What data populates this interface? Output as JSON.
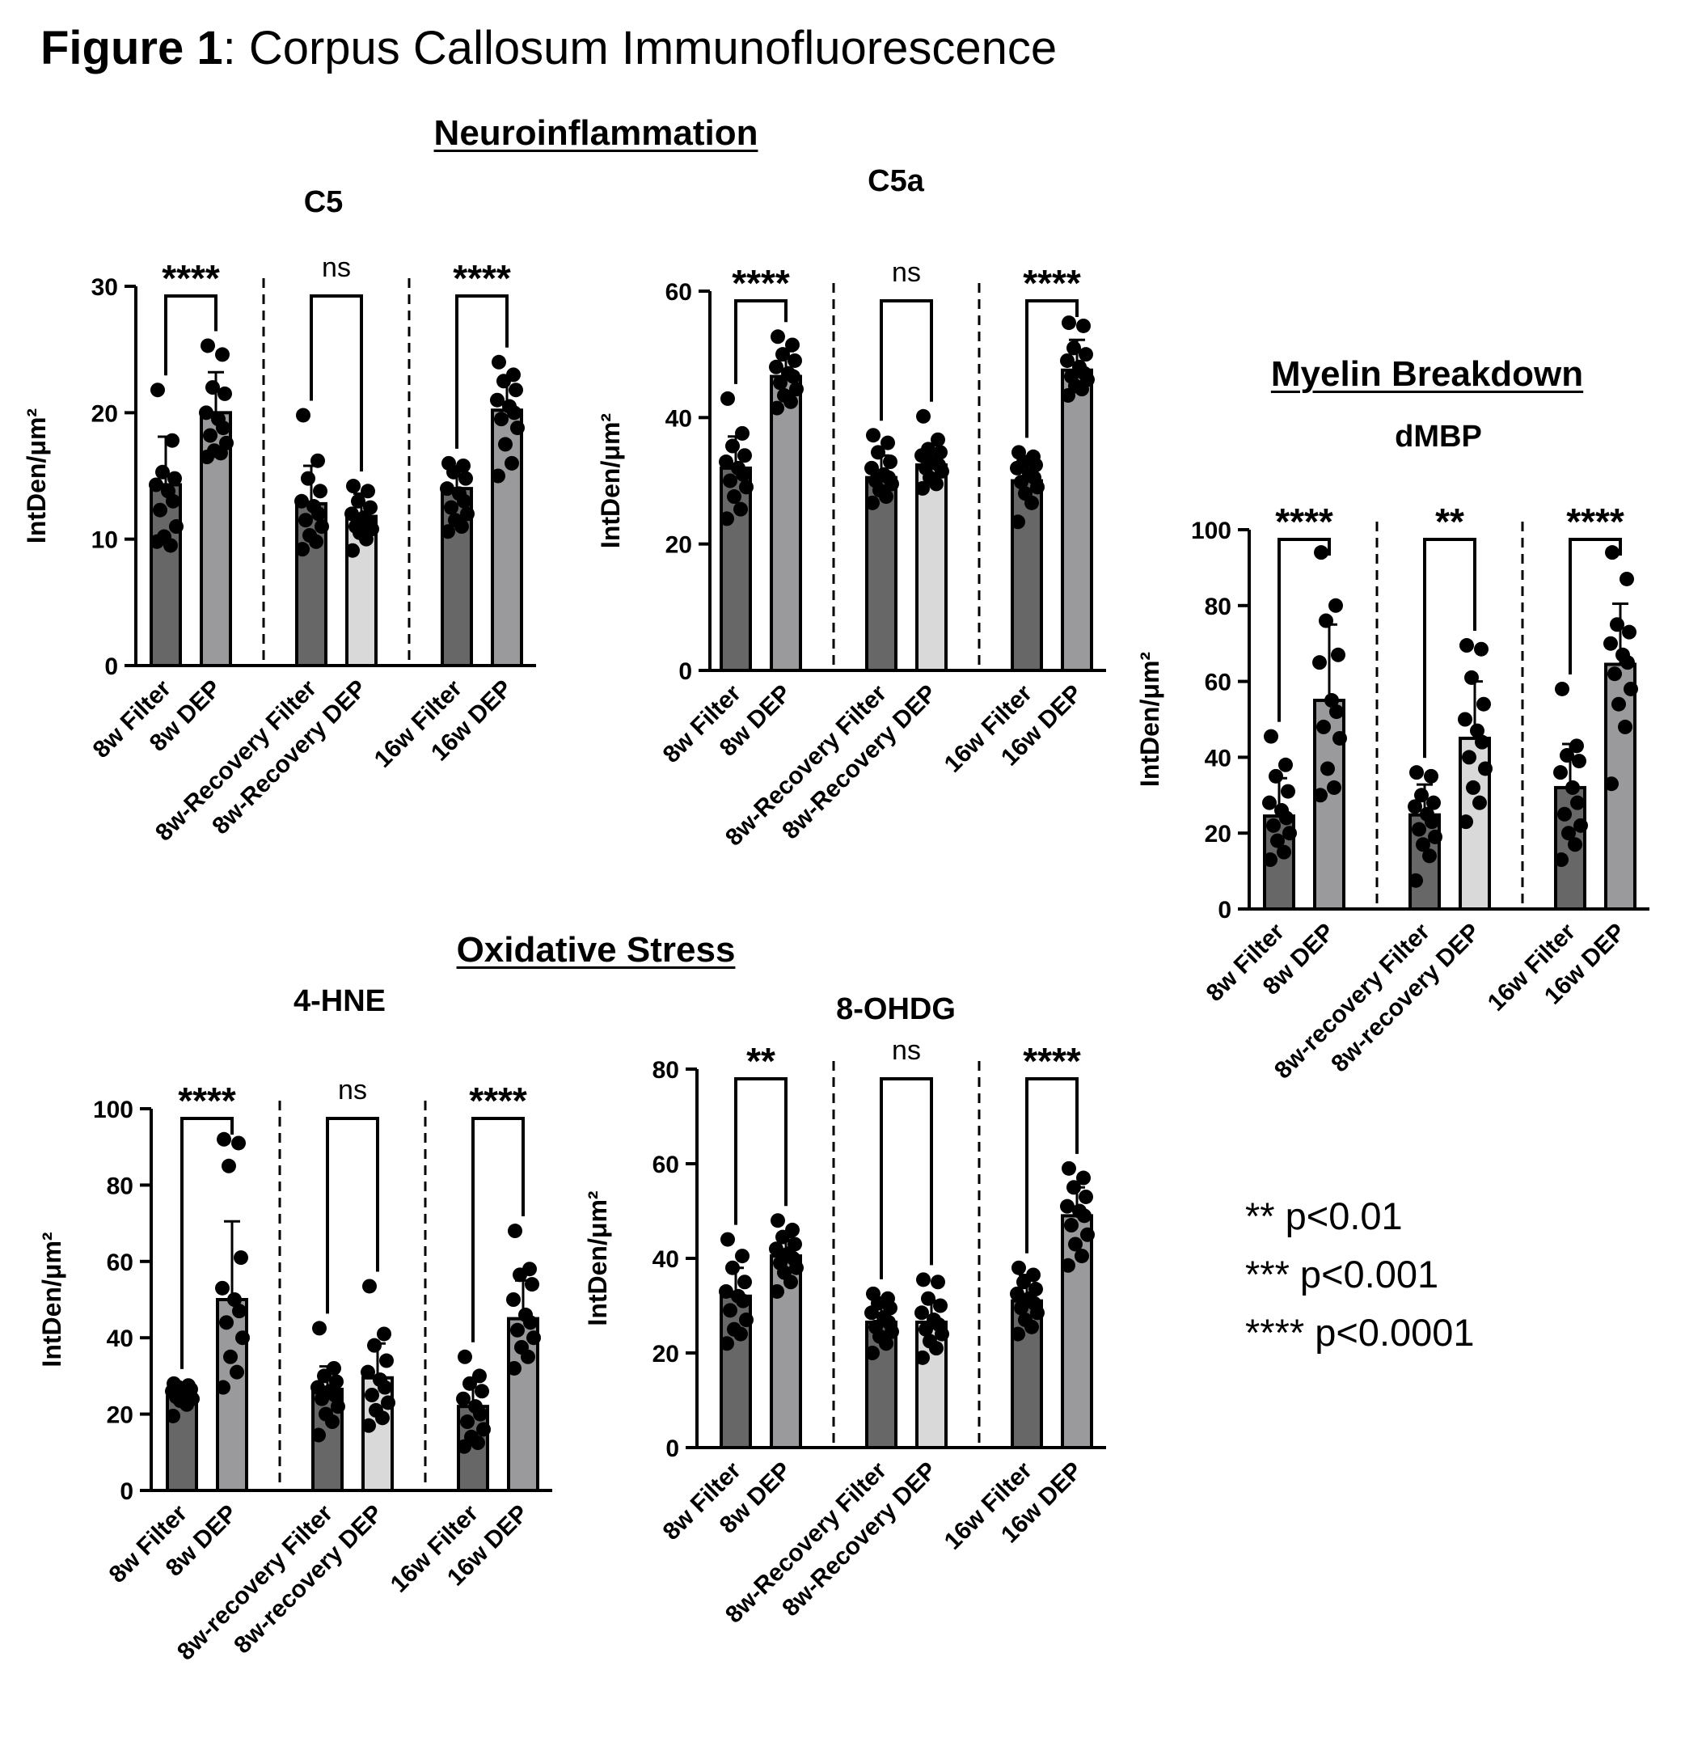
{
  "figure": {
    "title_bold": "Figure 1",
    "title_rest": ": Corpus Callosum Immunofluorescence"
  },
  "sections": {
    "neuro": "Neuroinflammation",
    "oxid": "Oxidative Stress",
    "myelin": "Myelin Breakdown"
  },
  "legend": [
    "** p<0.01",
    "*** p<0.001",
    "**** p<0.0001"
  ],
  "colors": {
    "filter": "#676767",
    "dep_dark": "#9a9a9d",
    "recovery_dep": "#d9d9d9",
    "point": "#000000"
  },
  "chart_data": [
    {
      "id": "c5",
      "type": "bar",
      "title": "C5",
      "ylabel": "IntDen/μm²",
      "ylim": [
        0,
        30
      ],
      "yticks": [
        0,
        10,
        20,
        30
      ],
      "categories": [
        "8w Filter",
        "8w DEP",
        "8w-Recovery Filter",
        "8w-Recovery DEP",
        "16w Filter",
        "16w DEP"
      ],
      "values": [
        14.3,
        20.0,
        12.8,
        11.8,
        14.0,
        20.2
      ],
      "errors": [
        3.8,
        3.2,
        3.0,
        1.8,
        1.6,
        2.6
      ],
      "points": [
        [
          21.8,
          17.8,
          15.3,
          14.8,
          14.3,
          13.8,
          13.0,
          12.3,
          11.0,
          10.2,
          9.5,
          9.8
        ],
        [
          25.3,
          24.6,
          22.0,
          21.5,
          20.0,
          19.5,
          18.8,
          18.2,
          17.6,
          17.0,
          16.8,
          16.5
        ],
        [
          19.8,
          16.2,
          14.8,
          13.8,
          13.0,
          12.6,
          12.0,
          11.5,
          11.0,
          10.3,
          9.8,
          9.2
        ],
        [
          14.2,
          13.8,
          13.0,
          12.5,
          12.0,
          11.7,
          11.3,
          11.0,
          10.8,
          10.5,
          10.0,
          9.1
        ],
        [
          16.0,
          15.8,
          15.3,
          14.8,
          14.0,
          13.6,
          13.0,
          12.5,
          12.0,
          11.5,
          11.0,
          10.6
        ],
        [
          24.0,
          23.0,
          22.5,
          21.8,
          21.0,
          20.5,
          20.0,
          19.5,
          18.8,
          17.5,
          16.0,
          15.0
        ]
      ],
      "significance": [
        "****",
        "ns",
        "****"
      ]
    },
    {
      "id": "c5a",
      "type": "bar",
      "title": "C5a",
      "ylabel": "IntDen/μm²",
      "ylim": [
        0,
        60
      ],
      "yticks": [
        0,
        20,
        40,
        60
      ],
      "categories": [
        "8w Filter",
        "8w DEP",
        "8w-Recovery Filter",
        "8w-Recovery DEP",
        "16w Filter",
        "16w DEP"
      ],
      "values": [
        32.0,
        46.5,
        30.5,
        32.5,
        30.0,
        47.5
      ],
      "errors": [
        5.0,
        4.0,
        3.5,
        3.2,
        3.0,
        4.8
      ],
      "points": [
        [
          43.0,
          37.5,
          35.5,
          34.0,
          33.0,
          32.0,
          31.0,
          30.0,
          29.0,
          27.5,
          25.5,
          24.0
        ],
        [
          52.8,
          51.5,
          50.0,
          49.0,
          48.0,
          47.0,
          46.5,
          45.5,
          44.5,
          43.5,
          42.5,
          41.5
        ],
        [
          37.2,
          36.0,
          34.5,
          33.0,
          32.0,
          31.0,
          30.5,
          30.0,
          29.5,
          28.5,
          27.5,
          26.5
        ],
        [
          40.2,
          36.5,
          35.0,
          34.5,
          34.0,
          33.0,
          32.5,
          32.0,
          31.5,
          30.5,
          29.5,
          28.8
        ],
        [
          34.5,
          33.8,
          33.0,
          32.5,
          32.0,
          31.0,
          30.5,
          29.8,
          29.0,
          28.0,
          26.5,
          23.5
        ],
        [
          55.0,
          54.5,
          51.0,
          50.0,
          49.0,
          48.0,
          47.0,
          46.5,
          46.0,
          45.0,
          44.5,
          43.5
        ]
      ],
      "significance": [
        "****",
        "ns",
        "****"
      ]
    },
    {
      "id": "dmbp",
      "type": "bar",
      "title": "dMBP",
      "ylabel": "IntDen/μm²",
      "ylim": [
        0,
        100
      ],
      "yticks": [
        0,
        20,
        40,
        60,
        80,
        100
      ],
      "categories": [
        "8w Filter",
        "8w DEP",
        "8w-recovery Filter",
        "8w-recovery DEP",
        "16w Filter",
        "16w DEP"
      ],
      "values": [
        24.5,
        55.0,
        24.8,
        45.0,
        32.0,
        64.5
      ],
      "errors": [
        10.0,
        20.0,
        8.0,
        15.0,
        11.5,
        16.0
      ],
      "points": [
        [
          45.5,
          38.0,
          35.0,
          31.0,
          28.0,
          26.0,
          24.0,
          22.0,
          20.0,
          18.0,
          15.0,
          13.0
        ],
        [
          94.0,
          80.0,
          76.0,
          67.0,
          65.0,
          55.0,
          52.0,
          48.0,
          45.0,
          37.0,
          32.0,
          30.0
        ],
        [
          36.0,
          35.0,
          30.0,
          28.0,
          27.0,
          25.0,
          23.0,
          21.0,
          19.0,
          17.0,
          14.0,
          7.5
        ],
        [
          69.5,
          68.5,
          61.0,
          54.0,
          50.0,
          47.0,
          44.0,
          40.0,
          37.0,
          32.0,
          28.0,
          23.0
        ],
        [
          58.0,
          43.0,
          40.5,
          39.0,
          36.0,
          32.0,
          28.0,
          25.0,
          22.0,
          20.0,
          17.0,
          13.0
        ],
        [
          94.0,
          87.0,
          75.0,
          73.0,
          70.0,
          67.0,
          65.0,
          62.0,
          58.0,
          54.0,
          48.0,
          33.0
        ]
      ],
      "significance": [
        "****",
        "**",
        "****"
      ]
    },
    {
      "id": "hne",
      "type": "bar",
      "title": "4-HNE",
      "ylabel": "IntDen/μm²",
      "ylim": [
        0,
        100
      ],
      "yticks": [
        0,
        20,
        40,
        60,
        80,
        100
      ],
      "categories": [
        "8w Filter",
        "8w DEP",
        "8w-recovery Filter",
        "8w-recovery DEP",
        "16w Filter",
        "16w DEP"
      ],
      "values": [
        24.5,
        50.0,
        26.5,
        29.5,
        22.0,
        45.0
      ],
      "errors": [
        2.5,
        20.5,
        6.0,
        9.0,
        7.0,
        10.0
      ],
      "points": [
        [
          28.0,
          27.5,
          27.0,
          26.5,
          26.0,
          25.5,
          25.0,
          24.5,
          24.0,
          23.5,
          22.5,
          19.5
        ],
        [
          92.0,
          91.0,
          85.0,
          61.0,
          53.0,
          50.0,
          47.0,
          44.0,
          40.0,
          35.0,
          31.0,
          27.0
        ],
        [
          42.5,
          32.0,
          30.0,
          28.5,
          27.0,
          26.0,
          25.0,
          24.0,
          22.0,
          20.0,
          18.0,
          14.5
        ],
        [
          53.5,
          41.0,
          38.0,
          34.0,
          31.0,
          29.0,
          27.0,
          25.0,
          23.0,
          21.0,
          19.0,
          17.0
        ],
        [
          35.0,
          30.0,
          28.0,
          26.0,
          24.0,
          22.0,
          20.0,
          18.0,
          16.0,
          14.0,
          12.5,
          11.5
        ],
        [
          68.0,
          58.0,
          56.5,
          54.0,
          50.0,
          46.0,
          44.0,
          42.0,
          40.0,
          37.5,
          35.0,
          32.0
        ]
      ],
      "significance": [
        "****",
        "ns",
        "****"
      ]
    },
    {
      "id": "ohdg",
      "type": "bar",
      "title": "8-OHDG",
      "ylabel": "IntDen/μm²",
      "ylim": [
        0,
        80
      ],
      "yticks": [
        0,
        20,
        40,
        60,
        80
      ],
      "categories": [
        "8w Filter",
        "8w DEP",
        "8w-Recovery Filter",
        "8w-Recovery DEP",
        "16w Filter",
        "16w DEP"
      ],
      "values": [
        32.0,
        40.5,
        26.5,
        26.5,
        31.0,
        49.0
      ],
      "errors": [
        6.0,
        4.0,
        4.0,
        4.5,
        5.5,
        6.0
      ],
      "points": [
        [
          44.0,
          40.5,
          38.0,
          35.0,
          33.0,
          32.0,
          31.0,
          29.0,
          27.0,
          25.0,
          24.0,
          22.0
        ],
        [
          48.0,
          46.0,
          44.5,
          43.0,
          42.0,
          41.0,
          40.0,
          39.0,
          38.0,
          37.0,
          35.0,
          33.0
        ],
        [
          32.5,
          31.5,
          30.5,
          29.5,
          28.5,
          27.5,
          26.5,
          25.5,
          24.5,
          23.5,
          22.0,
          20.0
        ],
        [
          35.5,
          35.0,
          31.5,
          30.0,
          28.5,
          27.0,
          26.0,
          25.0,
          24.0,
          22.5,
          21.0,
          19.0
        ],
        [
          38.0,
          36.5,
          35.0,
          33.5,
          32.5,
          31.5,
          30.5,
          29.5,
          28.5,
          27.0,
          25.5,
          24.0
        ],
        [
          59.0,
          57.0,
          55.0,
          53.0,
          51.0,
          50.0,
          49.0,
          47.0,
          45.0,
          43.0,
          40.5,
          38.5
        ]
      ],
      "significance": [
        "**",
        "ns",
        "****"
      ]
    }
  ]
}
